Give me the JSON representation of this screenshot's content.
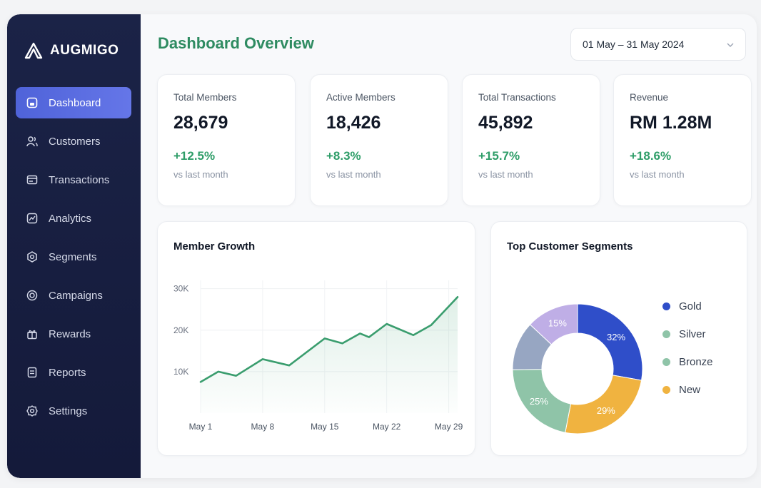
{
  "brand": {
    "name": "AUGMIGO"
  },
  "sidebar": {
    "items": [
      {
        "label": "Dashboard",
        "icon": "dashboard-icon",
        "active": true
      },
      {
        "label": "Customers",
        "icon": "customers-icon",
        "active": false
      },
      {
        "label": "Transactions",
        "icon": "transactions-icon",
        "active": false
      },
      {
        "label": "Analytics",
        "icon": "analytics-icon",
        "active": false
      },
      {
        "label": "Segments",
        "icon": "segments-icon",
        "active": false
      },
      {
        "label": "Campaigns",
        "icon": "campaigns-icon",
        "active": false
      },
      {
        "label": "Rewards",
        "icon": "rewards-icon",
        "active": false
      },
      {
        "label": "Reports",
        "icon": "reports-icon",
        "active": false
      },
      {
        "label": "Settings",
        "icon": "settings-icon",
        "active": false
      }
    ]
  },
  "header": {
    "title": "Dashboard Overview",
    "date_range": "01 May – 31 May 2024"
  },
  "kpis": [
    {
      "label": "Total Members",
      "value": "28,679",
      "delta": "+12.5%",
      "sub": "vs last month"
    },
    {
      "label": "Active Members",
      "value": "18,426",
      "delta": "+8.3%",
      "sub": "vs last month"
    },
    {
      "label": "Total Transactions",
      "value": "45,892",
      "delta": "+15.7%",
      "sub": "vs last month"
    },
    {
      "label": "Revenue",
      "value": "RM 1.28M",
      "delta": "+18.6%",
      "sub": "vs last month"
    }
  ],
  "member_growth": {
    "title": "Member Growth"
  },
  "segments_card": {
    "title": "Top Customer Segments"
  },
  "colors": {
    "accent_green": "#2e8b61",
    "line_green": "#3a9d6e",
    "gold": "#2f4ec9",
    "silver": "#8fc4a8",
    "bronze": "#97a6c2",
    "new": "#f0b340",
    "extra": "#bfaee6"
  },
  "chart_data": [
    {
      "type": "line",
      "title": "Member Growth",
      "x_ticks": [
        "May 1",
        "May 8",
        "May 15",
        "May 22",
        "May 29"
      ],
      "y_ticks": [
        "10K",
        "20K",
        "30K"
      ],
      "ylim": [
        0,
        32000
      ],
      "xlim": [
        1,
        30
      ],
      "grid": true,
      "series": [
        {
          "points": [
            [
              1,
              7500
            ],
            [
              3,
              10000
            ],
            [
              5,
              9000
            ],
            [
              8,
              13000
            ],
            [
              11,
              11500
            ],
            [
              15,
              18000
            ],
            [
              17,
              16800
            ],
            [
              19,
              19200
            ],
            [
              20,
              18300
            ],
            [
              22,
              21500
            ],
            [
              25,
              18800
            ],
            [
              27,
              21200
            ],
            [
              30,
              28000
            ]
          ]
        }
      ]
    },
    {
      "type": "pie",
      "title": "Top Customer Segments",
      "legend_placement": "right",
      "slices": [
        {
          "label": "Gold",
          "value": 32,
          "display": "32%",
          "color": "#2f4ec9"
        },
        {
          "label": "New",
          "value": 29,
          "display": "29%",
          "color": "#f0b340"
        },
        {
          "label": "Silver",
          "value": 25,
          "display": "25%",
          "color": "#8fc4a8"
        },
        {
          "label": "Bronze",
          "value": 14,
          "display": "",
          "color": "#97a6c2"
        },
        {
          "label": "",
          "value": 15,
          "display": "15%",
          "color": "#bfaee6"
        }
      ],
      "legend": [
        {
          "label": "Gold",
          "color": "#2f4ec9"
        },
        {
          "label": "Silver",
          "color": "#8fc4a8"
        },
        {
          "label": "Bronze",
          "color": "#8fc4a8"
        },
        {
          "label": "New",
          "color": "#f0b340"
        }
      ]
    }
  ]
}
